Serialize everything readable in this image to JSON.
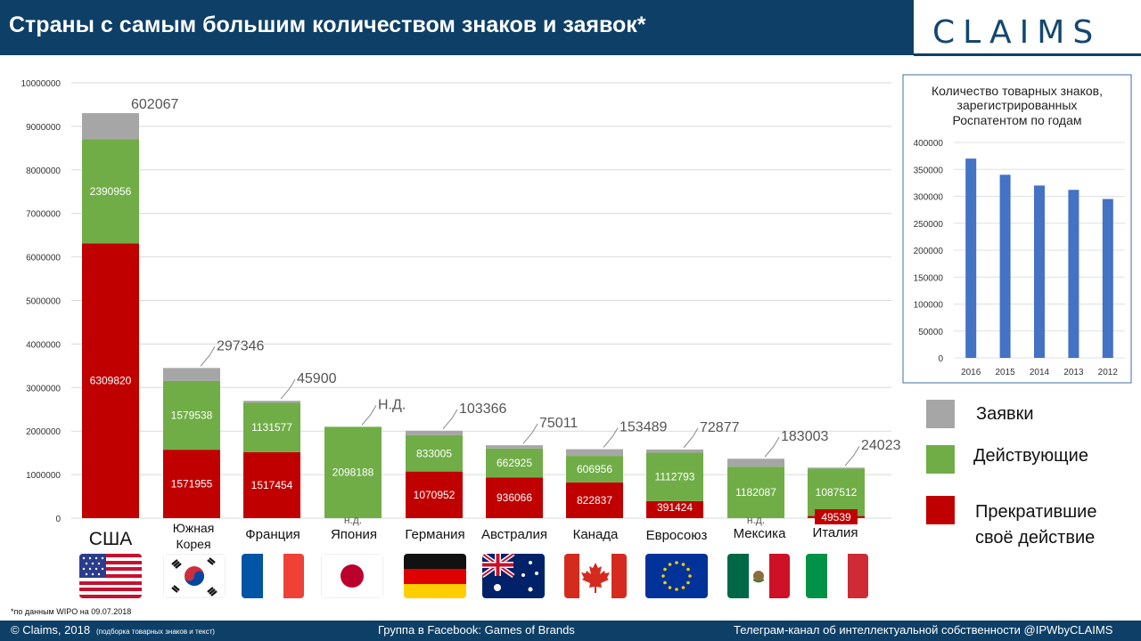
{
  "header": {
    "title": "Страны с самым большим количеством знаков и заявок*",
    "logo": "CLAIMS"
  },
  "colors": {
    "header_bg": "#0e3f66",
    "applications": "#a6a6a6",
    "active": "#70ad47",
    "terminated": "#c00000",
    "inset_bar": "#4472c4"
  },
  "chart_data": [
    {
      "type": "bar",
      "stacked": true,
      "ylim": [
        0,
        10000000
      ],
      "yticks": [
        "0",
        "1000000",
        "2000000",
        "3000000",
        "4000000",
        "5000000",
        "6000000",
        "7000000",
        "8000000",
        "9000000",
        "10000000"
      ],
      "categories": [
        "США",
        "Южная Корея",
        "Франция",
        "Япония",
        "Германия",
        "Австралия",
        "Канада",
        "Евросоюз",
        "Мексика",
        "Италия"
      ],
      "series": [
        {
          "name": "Прекратившие своё действие",
          "values": [
            6309820,
            1571955,
            1517454,
            null,
            1070952,
            936066,
            822837,
            391424,
            null,
            49539
          ],
          "labels": [
            "6309820",
            "1571955",
            "1517454",
            "н.д.",
            "1070952",
            "936066",
            "822837",
            "391424",
            "н.д.",
            "49539"
          ]
        },
        {
          "name": "Действующие",
          "values": [
            2390956,
            1579538,
            1131577,
            2098188,
            833005,
            662925,
            606956,
            1112793,
            1182087,
            1087512
          ],
          "labels": [
            "2390956",
            "1579538",
            "1131577",
            "2098188",
            "833005",
            "662925",
            "606956",
            "1112793",
            "1182087",
            "1087512"
          ]
        },
        {
          "name": "Заявки",
          "values": [
            602067,
            297346,
            45900,
            null,
            103366,
            75011,
            153489,
            72877,
            183003,
            24023
          ],
          "labels": [
            "602067",
            "297346",
            "45900",
            "Н.Д.",
            "103366",
            "75011",
            "153489",
            "72877",
            "183003",
            "24023"
          ]
        }
      ],
      "legend": "right"
    },
    {
      "type": "bar",
      "title": "Количество товарных знаков, зарегистрированных Роспатентом по годам",
      "categories": [
        "2016",
        "2015",
        "2014",
        "2013",
        "2012"
      ],
      "values": [
        370000,
        340000,
        320000,
        312000,
        295000
      ],
      "ylim": [
        0,
        400000
      ],
      "yticks": [
        "0",
        "50000",
        "100000",
        "150000",
        "200000",
        "250000",
        "300000",
        "350000",
        "400000"
      ]
    }
  ],
  "legend": {
    "applications": "Заявки",
    "active": "Действующие",
    "terminated_1": "Прекратившие",
    "terminated_2": "своё действие"
  },
  "countries": [
    "США",
    "Южная",
    "Корея",
    "Франция",
    "Япония",
    "Германия",
    "Австралия",
    "Канада",
    "Евросоюз",
    "Мексика",
    "Италия"
  ],
  "note": "*по данным WIPO на  09.07.2018",
  "footer": {
    "left": "© Claims, 2018",
    "left_small": "(подборка товарных знаков и текст)",
    "center": "Группа в Facebook: Games of Brands",
    "right": "Телеграм-канал  об интеллектуальной  собственности  @IPWbyCLAIMS"
  }
}
